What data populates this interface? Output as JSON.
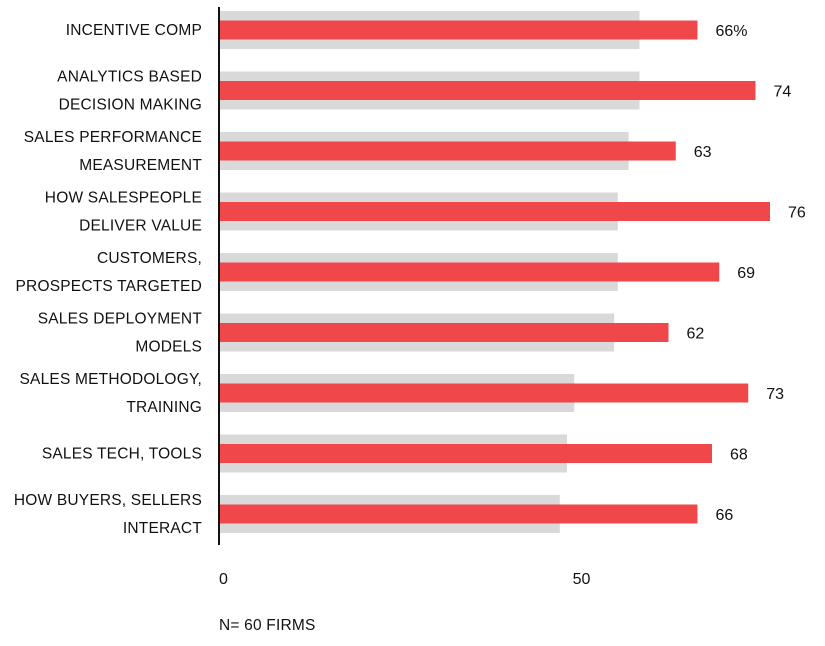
{
  "chart_data": {
    "type": "bar",
    "orientation": "horizontal",
    "categories": [
      [
        "INCENTIVE COMP"
      ],
      [
        "ANALYTICS BASED",
        "DECISION MAKING"
      ],
      [
        "SALES PERFORMANCE",
        "MEASUREMENT"
      ],
      [
        "HOW SALESPEOPLE",
        "DELIVER VALUE"
      ],
      [
        "CUSTOMERS,",
        "PROSPECTS TARGETED"
      ],
      [
        "SALES DEPLOYMENT",
        "MODELS"
      ],
      [
        "SALES METHODOLOGY,",
        "TRAINING"
      ],
      [
        "SALES TECH, TOOLS"
      ],
      [
        "HOW BUYERS, SELLERS",
        "INTERACT"
      ]
    ],
    "series": [
      {
        "values": [
          58,
          58,
          56.5,
          55,
          55,
          54.5,
          49,
          48,
          47
        ],
        "color": "#d9d9d9"
      },
      {
        "values": [
          66,
          74,
          63,
          76,
          69,
          62,
          73,
          68,
          66
        ],
        "color": "#f0474a"
      }
    ],
    "value_labels": [
      "66%",
      "74",
      "63",
      "76",
      "69",
      "62",
      "73",
      "68",
      "66"
    ],
    "x_ticks": [
      {
        "value": 0,
        "label": "0"
      },
      {
        "value": 50,
        "label": "50"
      }
    ],
    "xlim": [
      0,
      80
    ],
    "grid": false
  },
  "footnote": "N= 60 FIRMS",
  "colors": {
    "axis": "#111111",
    "text": "#111111"
  }
}
